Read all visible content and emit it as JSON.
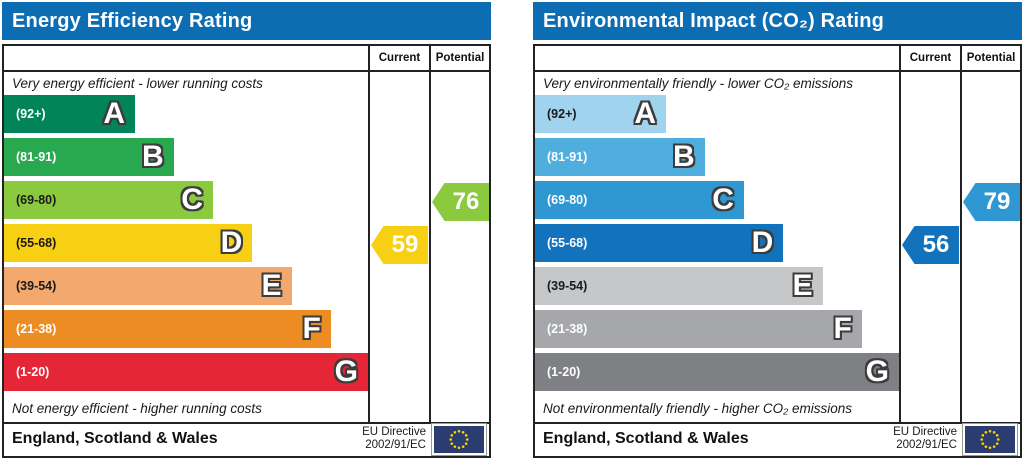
{
  "charts": [
    {
      "id": "energy-efficiency",
      "title": "Energy Efficiency Rating",
      "columns": {
        "current": "Current",
        "potential": "Potential"
      },
      "caption_top": "Very energy efficient - lower running costs",
      "caption_bottom": "Not energy efficient - higher running costs",
      "bands": [
        {
          "letter": "A",
          "range": "(92+)",
          "color": "#008458",
          "label_color": "#ffffff",
          "width_pct": 36
        },
        {
          "letter": "B",
          "range": "(81-91)",
          "color": "#28a950",
          "label_color": "#ffffff",
          "width_pct": 46.6
        },
        {
          "letter": "C",
          "range": "(69-80)",
          "color": "#8bca3f",
          "label_color": "#1a1a1a",
          "width_pct": 57.4
        },
        {
          "letter": "D",
          "range": "(55-68)",
          "color": "#f7d014",
          "label_color": "#1a1a1a",
          "width_pct": 68.2
        },
        {
          "letter": "E",
          "range": "(39-54)",
          "color": "#f3a96e",
          "label_color": "#1a1a1a",
          "width_pct": 79
        },
        {
          "letter": "F",
          "range": "(21-38)",
          "color": "#ee8c24",
          "label_color": "#ffffff",
          "width_pct": 89.8
        },
        {
          "letter": "G",
          "range": "(1-20)",
          "color": "#e52636",
          "label_color": "#ffffff",
          "width_pct": 100
        }
      ],
      "current": {
        "value": "59",
        "band_index": 3,
        "color": "#f7d014"
      },
      "potential": {
        "value": "76",
        "band_index": 2,
        "color": "#8bca3f"
      },
      "footer": {
        "region": "England, Scotland & Wales",
        "directive_line1": "EU Directive",
        "directive_line2": "2002/91/EC"
      }
    },
    {
      "id": "environmental-impact",
      "title": "Environmental Impact (CO₂) Rating",
      "columns": {
        "current": "Current",
        "potential": "Potential"
      },
      "caption_top": "Very environmentally friendly - lower CO₂ emissions",
      "caption_bottom": "Not environmentally friendly - higher CO₂ emissions",
      "bands": [
        {
          "letter": "A",
          "range": "(92+)",
          "color": "#9fd3ee",
          "label_color": "#1a1a1a",
          "width_pct": 36
        },
        {
          "letter": "B",
          "range": "(81-91)",
          "color": "#4faede",
          "label_color": "#ffffff",
          "width_pct": 46.6
        },
        {
          "letter": "C",
          "range": "(69-80)",
          "color": "#2f97d2",
          "label_color": "#ffffff",
          "width_pct": 57.4
        },
        {
          "letter": "D",
          "range": "(55-68)",
          "color": "#1272bc",
          "label_color": "#ffffff",
          "width_pct": 68.2
        },
        {
          "letter": "E",
          "range": "(39-54)",
          "color": "#c6c7c9",
          "label_color": "#1a1a1a",
          "width_pct": 79
        },
        {
          "letter": "F",
          "range": "(21-38)",
          "color": "#a5a7aa",
          "label_color": "#ffffff",
          "width_pct": 89.8
        },
        {
          "letter": "G",
          "range": "(1-20)",
          "color": "#7e8083",
          "label_color": "#ffffff",
          "width_pct": 100
        }
      ],
      "current": {
        "value": "56",
        "band_index": 3,
        "color": "#1272bc"
      },
      "potential": {
        "value": "79",
        "band_index": 2,
        "color": "#2f97d2"
      },
      "footer": {
        "region": "England, Scotland & Wales",
        "directive_line1": "EU Directive",
        "directive_line2": "2002/91/EC"
      }
    }
  ],
  "chart_data": [
    {
      "type": "bar",
      "title": "Energy Efficiency Rating",
      "categories": [
        "A (92+)",
        "B (81-91)",
        "C (69-80)",
        "D (55-68)",
        "E (39-54)",
        "F (21-38)",
        "G (1-20)"
      ],
      "band_relative_lengths_pct": [
        36,
        46.6,
        57.4,
        68.2,
        79,
        89.8,
        100
      ],
      "series": [
        {
          "name": "Current",
          "value": 59,
          "band": "D"
        },
        {
          "name": "Potential",
          "value": 76,
          "band": "C"
        }
      ],
      "top_caption": "Very energy efficient - lower running costs",
      "bottom_caption": "Not energy efficient - higher running costs",
      "region": "England, Scotland & Wales",
      "directive": "EU Directive 2002/91/EC",
      "value_range": [
        1,
        100
      ]
    },
    {
      "type": "bar",
      "title": "Environmental Impact (CO₂) Rating",
      "categories": [
        "A (92+)",
        "B (81-91)",
        "C (69-80)",
        "D (55-68)",
        "E (39-54)",
        "F (21-38)",
        "G (1-20)"
      ],
      "band_relative_lengths_pct": [
        36,
        46.6,
        57.4,
        68.2,
        79,
        89.8,
        100
      ],
      "series": [
        {
          "name": "Current",
          "value": 56,
          "band": "D"
        },
        {
          "name": "Potential",
          "value": 79,
          "band": "C"
        }
      ],
      "top_caption": "Very environmentally friendly - lower CO₂ emissions",
      "bottom_caption": "Not environmentally friendly - higher CO₂ emissions",
      "region": "England, Scotland & Wales",
      "directive": "EU Directive 2002/91/EC",
      "value_range": [
        1,
        100
      ]
    }
  ]
}
